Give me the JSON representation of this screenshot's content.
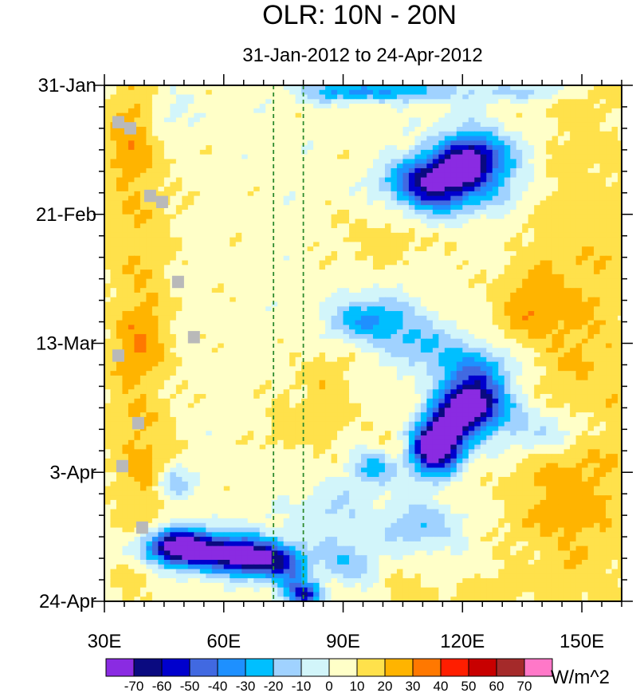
{
  "chart_data": {
    "type": "heatmap",
    "title": "OLR: 10N - 20N",
    "subtitle": "31-Jan-2012 to 24-Apr-2012",
    "x_axis": {
      "ticks": [
        30,
        60,
        90,
        120,
        150
      ],
      "tick_labels": [
        "30E",
        "60E",
        "90E",
        "120E",
        "150E"
      ],
      "range": [
        30,
        160
      ],
      "unit": "degrees east"
    },
    "y_axis": {
      "ticks": [
        0,
        21,
        42,
        63,
        84
      ],
      "tick_labels": [
        "31-Jan",
        "21-Feb",
        "13-Mar",
        "3-Apr",
        "24-Apr"
      ],
      "range": [
        0,
        84
      ],
      "unit": "days since 31-Jan-2012",
      "direction": "time increases downward"
    },
    "reference_lines": [
      {
        "x": 72.5,
        "style": "dashed",
        "color": "#2e8b2e"
      },
      {
        "x": 80,
        "style": "dashed",
        "color": "#2e8b2e"
      }
    ],
    "colorbar": {
      "label": "W/m^2",
      "levels": [
        -70,
        -60,
        -50,
        -40,
        -30,
        -20,
        -10,
        0,
        10,
        20,
        30,
        40,
        50,
        60,
        70
      ],
      "level_labels": [
        "-70",
        "-60",
        "-50",
        "-40",
        "-30",
        "-20",
        "-10",
        "0",
        "10",
        "20",
        "30",
        "40",
        "50",
        "60",
        "70"
      ],
      "colors": [
        "#8a2be2",
        "#0a0a80",
        "#0000cd",
        "#4169e1",
        "#1e90ff",
        "#00bfff",
        "#a0d2ff",
        "#d2f5fa",
        "#ffffc8",
        "#ffe14b",
        "#ffb400",
        "#ff7800",
        "#ff1e00",
        "#c80000",
        "#a52a2a",
        "#ff78c8"
      ]
    },
    "features": [
      {
        "kind": "negative",
        "x": [
          88,
          140
        ],
        "y": [
          0,
          2
        ],
        "peak": -55,
        "note": "top band near 90E"
      },
      {
        "kind": "negative",
        "x": [
          108,
          138
        ],
        "y": [
          10,
          20
        ],
        "peak": -75,
        "note": "convection streak ~115E mid-Feb"
      },
      {
        "kind": "negative",
        "x": [
          88,
          118
        ],
        "y": [
          34,
          44
        ],
        "peak": -45,
        "note": "band ~95E early March"
      },
      {
        "kind": "negative",
        "x": [
          112,
          136
        ],
        "y": [
          50,
          60
        ],
        "peak": -75,
        "note": "strong streak ~118E late March"
      },
      {
        "kind": "negative",
        "x": [
          36,
          80
        ],
        "y": [
          71,
          79
        ],
        "peak": -75,
        "note": "westward streak 40E-75E mid-April"
      },
      {
        "kind": "positive",
        "x": [
          30,
          48
        ],
        "y": [
          0,
          84
        ],
        "peak": 25,
        "note": "warm band west edge"
      },
      {
        "kind": "positive",
        "x": [
          130,
          160
        ],
        "y": [
          20,
          84
        ],
        "peak": 30,
        "note": "eastern warm region"
      },
      {
        "kind": "positive",
        "x": [
          80,
          100
        ],
        "y": [
          44,
          56
        ],
        "peak": 25,
        "note": "near 85E mid-March"
      },
      {
        "kind": "missing",
        "x": [
          32,
          44
        ],
        "y": [
          4,
          10
        ],
        "note": "gray cells (no data)"
      }
    ]
  }
}
